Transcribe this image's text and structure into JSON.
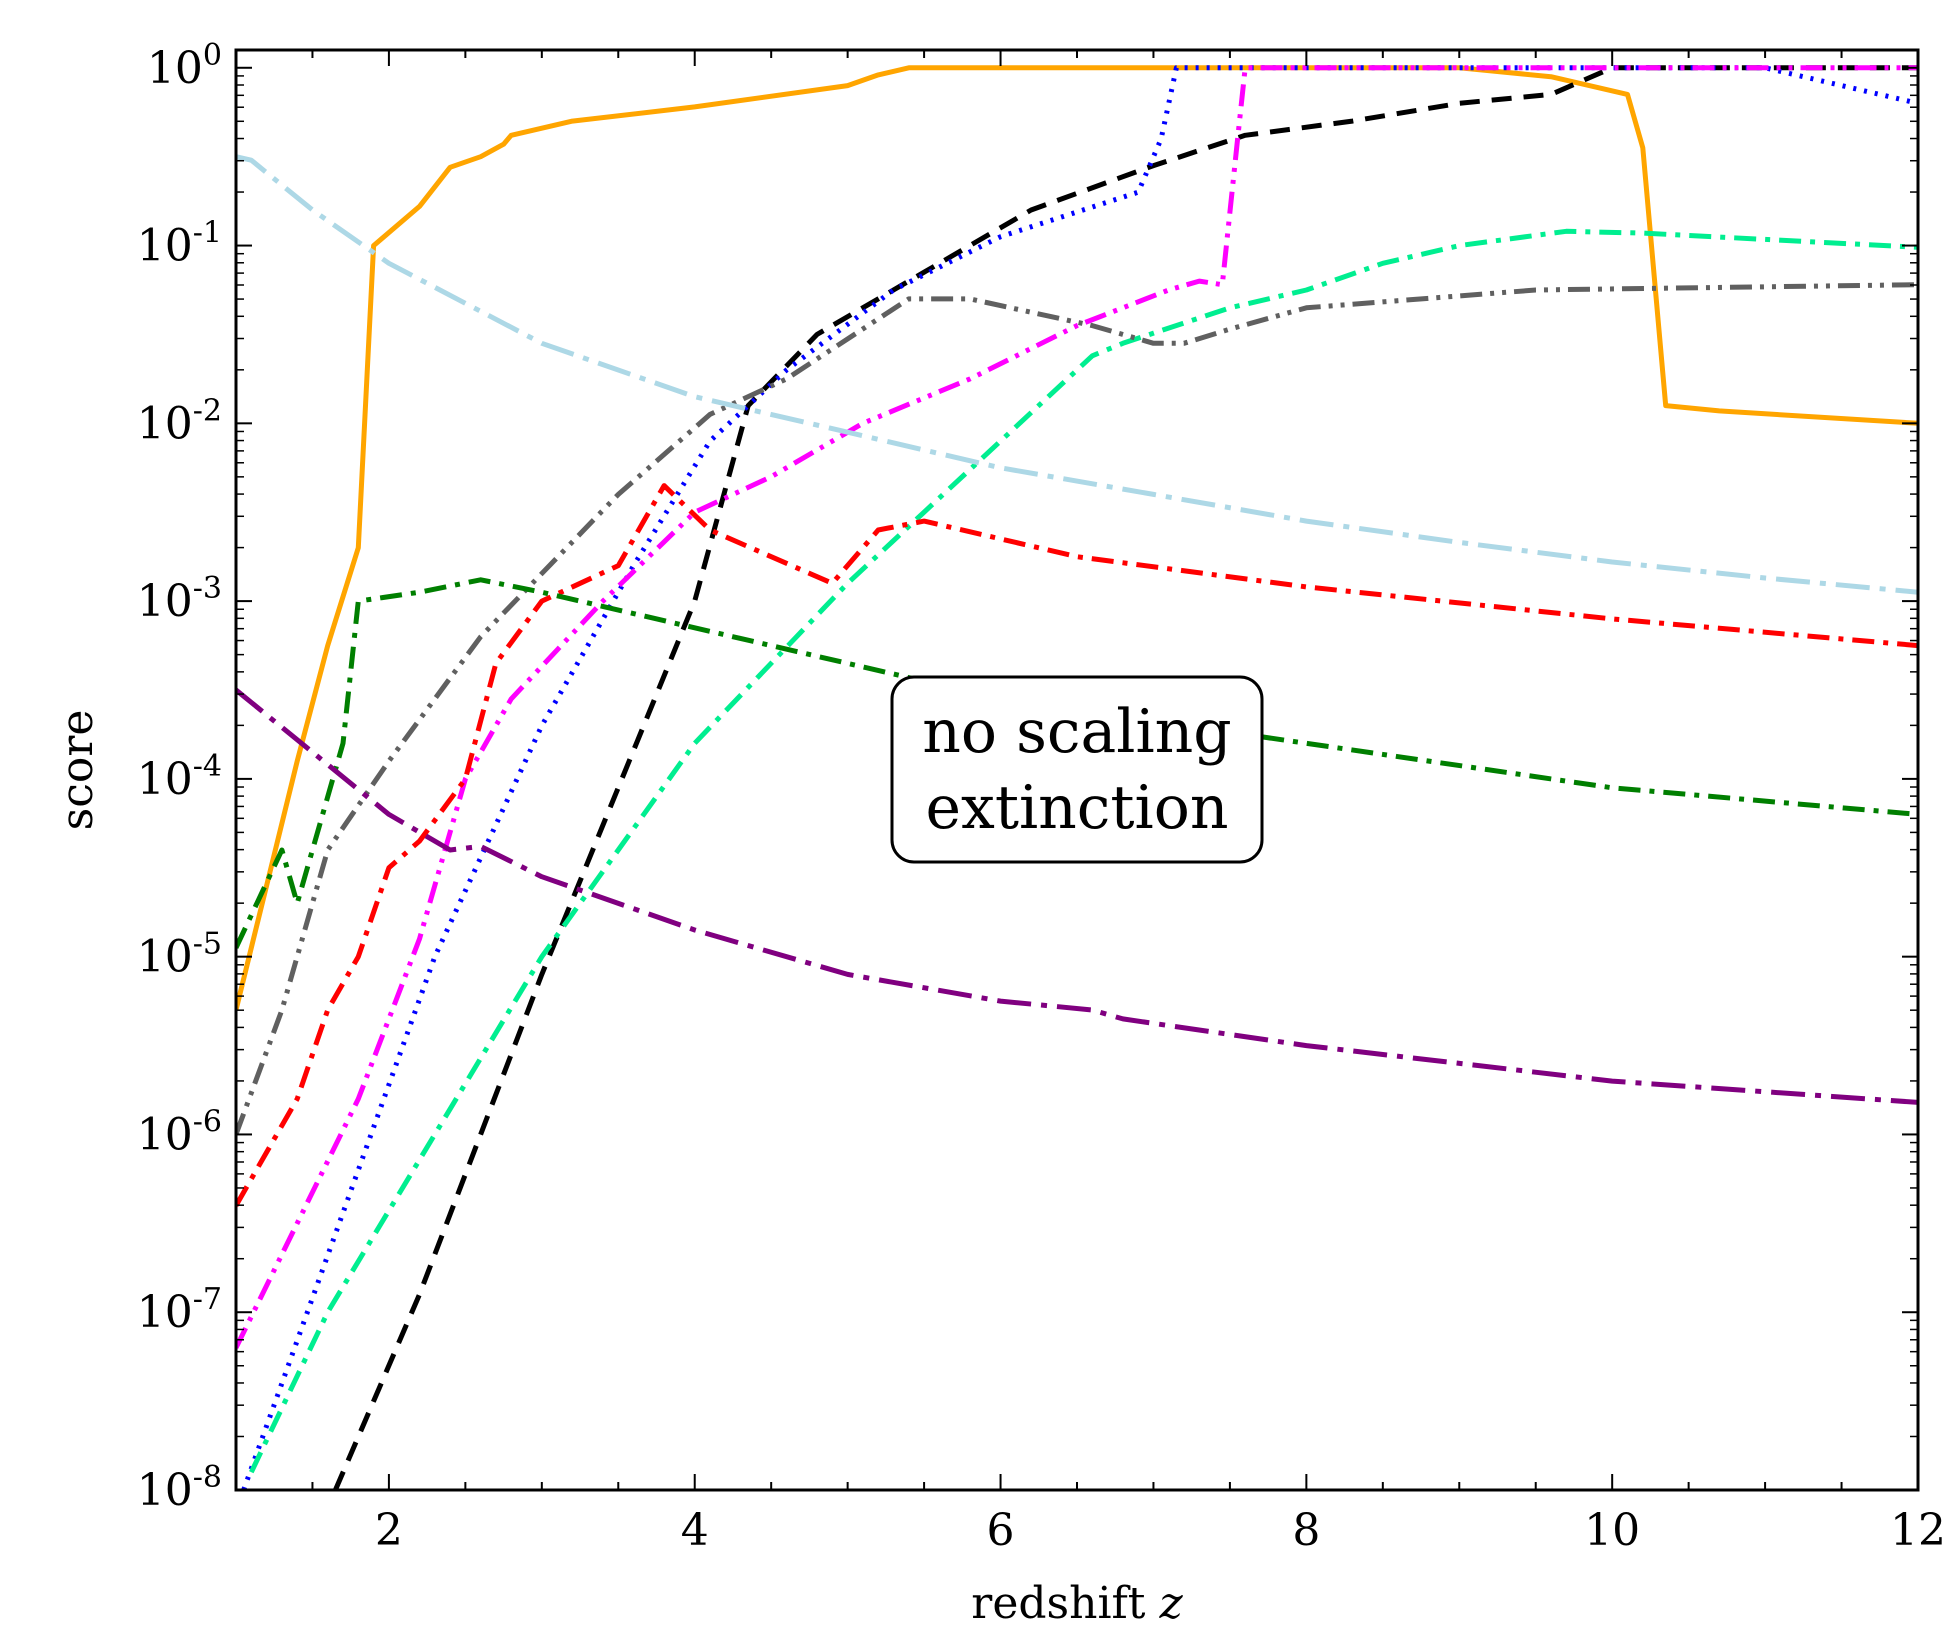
{
  "chart_data": {
    "type": "line",
    "title": "",
    "xlabel": "redshift",
    "xlabel_var": "z",
    "ylabel": "score",
    "xlim": [
      1,
      12
    ],
    "ylim_log10": [
      -8,
      0.1
    ],
    "yscale": "log",
    "x_ticks": [
      {
        "value": 2,
        "label": "2"
      },
      {
        "value": 4,
        "label": "4"
      },
      {
        "value": 6,
        "label": "6"
      },
      {
        "value": 8,
        "label": "8"
      },
      {
        "value": 10,
        "label": "10"
      },
      {
        "value": 12,
        "label": "12"
      }
    ],
    "y_ticks": [
      {
        "exp": 0,
        "base": "10",
        "sup": "0"
      },
      {
        "exp": -1,
        "base": "10",
        "sup": "-1"
      },
      {
        "exp": -2,
        "base": "10",
        "sup": "-2"
      },
      {
        "exp": -3,
        "base": "10",
        "sup": "-3"
      },
      {
        "exp": -4,
        "base": "10",
        "sup": "-4"
      },
      {
        "exp": -5,
        "base": "10",
        "sup": "-5"
      },
      {
        "exp": -6,
        "base": "10",
        "sup": "-6"
      },
      {
        "exp": -7,
        "base": "10",
        "sup": "-7"
      },
      {
        "exp": -8,
        "base": "10",
        "sup": "-8"
      }
    ],
    "annotation": {
      "lines": [
        "no scaling",
        "extinction"
      ]
    },
    "series": [
      {
        "name": "orange-solid",
        "color": "#ffa500",
        "style": "solid",
        "points": [
          [
            1,
            -5.3
          ],
          [
            1.2,
            -4.6
          ],
          [
            1.4,
            -3.9
          ],
          [
            1.6,
            -3.25
          ],
          [
            1.8,
            -2.7
          ],
          [
            1.9,
            -1.0
          ],
          [
            2.2,
            -0.78
          ],
          [
            2.4,
            -0.56
          ],
          [
            2.6,
            -0.5
          ],
          [
            2.75,
            -0.43
          ],
          [
            2.8,
            -0.38
          ],
          [
            3.2,
            -0.3
          ],
          [
            4,
            -0.22
          ],
          [
            5,
            -0.1
          ],
          [
            5.2,
            -0.04
          ],
          [
            5.4,
            0
          ],
          [
            9,
            0
          ],
          [
            9.6,
            -0.05
          ],
          [
            10.1,
            -0.15
          ],
          [
            10.2,
            -0.45
          ],
          [
            10.35,
            -1.9
          ],
          [
            10.7,
            -1.93
          ],
          [
            12,
            -2
          ]
        ]
      },
      {
        "name": "black-dashed",
        "color": "#000000",
        "style": "dashed",
        "points": [
          [
            1.65,
            -8
          ],
          [
            2.2,
            -6.9
          ],
          [
            3,
            -5.1
          ],
          [
            4,
            -3
          ],
          [
            4.35,
            -1.9
          ],
          [
            4.8,
            -1.5
          ],
          [
            5.5,
            -1.15
          ],
          [
            6.2,
            -0.8
          ],
          [
            7,
            -0.55
          ],
          [
            7.6,
            -0.38
          ],
          [
            8.3,
            -0.3
          ],
          [
            9,
            -0.2
          ],
          [
            9.6,
            -0.15
          ],
          [
            10,
            0
          ],
          [
            12,
            0
          ]
        ]
      },
      {
        "name": "blue-dotted",
        "color": "#0000ff",
        "style": "dotted",
        "points": [
          [
            1.05,
            -8
          ],
          [
            1.3,
            -7.4
          ],
          [
            1.8,
            -6.2
          ],
          [
            2.3,
            -5
          ],
          [
            3,
            -3.7
          ],
          [
            3.6,
            -2.8
          ],
          [
            4.1,
            -2.1
          ],
          [
            4.6,
            -1.7
          ],
          [
            5.3,
            -1.25
          ],
          [
            6,
            -0.95
          ],
          [
            6.9,
            -0.7
          ],
          [
            7.05,
            -0.4
          ],
          [
            7.15,
            0
          ],
          [
            11,
            0
          ],
          [
            12,
            -0.2
          ]
        ]
      },
      {
        "name": "magenta-dashdotdot",
        "color": "#ff00ff",
        "style": "dashdotdot",
        "points": [
          [
            1,
            -7.2
          ],
          [
            1.4,
            -6.5
          ],
          [
            1.8,
            -5.8
          ],
          [
            2.2,
            -4.9
          ],
          [
            2.5,
            -4
          ],
          [
            2.8,
            -3.55
          ],
          [
            3.4,
            -3
          ],
          [
            4,
            -2.5
          ],
          [
            4.5,
            -2.3
          ],
          [
            5.1,
            -2
          ],
          [
            5.8,
            -1.75
          ],
          [
            6.5,
            -1.45
          ],
          [
            7.1,
            -1.25
          ],
          [
            7.3,
            -1.2
          ],
          [
            7.45,
            -1.22
          ],
          [
            7.55,
            -0.4
          ],
          [
            7.6,
            0
          ],
          [
            12,
            0
          ]
        ]
      },
      {
        "name": "springgreen-dashdot",
        "color": "#00ee90",
        "style": "dashdot",
        "points": [
          [
            1.1,
            -7.9
          ],
          [
            1.6,
            -7
          ],
          [
            2.3,
            -6
          ],
          [
            3,
            -5
          ],
          [
            4,
            -3.8
          ],
          [
            5,
            -2.9
          ],
          [
            6,
            -2.1
          ],
          [
            6.6,
            -1.62
          ],
          [
            6.8,
            -1.55
          ],
          [
            7.5,
            -1.35
          ],
          [
            8,
            -1.25
          ],
          [
            8.5,
            -1.1
          ],
          [
            9,
            -1
          ],
          [
            9.7,
            -0.92
          ],
          [
            10.2,
            -0.93
          ],
          [
            12,
            -1.01
          ]
        ]
      },
      {
        "name": "gray-dashdotdot",
        "color": "#606060",
        "style": "dashdotdot",
        "points": [
          [
            1,
            -6
          ],
          [
            1.3,
            -5.3
          ],
          [
            1.6,
            -4.4
          ],
          [
            2,
            -3.9
          ],
          [
            2.6,
            -3.2
          ],
          [
            3.5,
            -2.4
          ],
          [
            4.1,
            -1.95
          ],
          [
            4.6,
            -1.75
          ],
          [
            5.4,
            -1.3
          ],
          [
            5.8,
            -1.3
          ],
          [
            6.6,
            -1.45
          ],
          [
            7,
            -1.55
          ],
          [
            7.2,
            -1.55
          ],
          [
            7.5,
            -1.47
          ],
          [
            8,
            -1.35
          ],
          [
            9.5,
            -1.25
          ],
          [
            12,
            -1.22
          ]
        ]
      },
      {
        "name": "red-dashdot",
        "color": "#ff0000",
        "style": "dashdot",
        "points": [
          [
            1,
            -6.4
          ],
          [
            1.4,
            -5.8
          ],
          [
            1.6,
            -5.3
          ],
          [
            1.8,
            -5
          ],
          [
            2,
            -4.5
          ],
          [
            2.2,
            -4.35
          ],
          [
            2.5,
            -4
          ],
          [
            2.7,
            -3.35
          ],
          [
            3,
            -3
          ],
          [
            3.5,
            -2.8
          ],
          [
            3.8,
            -2.35
          ],
          [
            4.1,
            -2.6
          ],
          [
            4.9,
            -2.9
          ],
          [
            5.2,
            -2.6
          ],
          [
            5.5,
            -2.55
          ],
          [
            6.5,
            -2.75
          ],
          [
            8,
            -2.92
          ],
          [
            10,
            -3.1
          ],
          [
            12,
            -3.25
          ]
        ]
      },
      {
        "name": "lightblue-longdashdot",
        "color": "#add8e6",
        "style": "longdashdot",
        "points": [
          [
            1,
            -0.5
          ],
          [
            1.1,
            -0.52
          ],
          [
            1.5,
            -0.8
          ],
          [
            2,
            -1.1
          ],
          [
            3,
            -1.55
          ],
          [
            4,
            -1.85
          ],
          [
            5,
            -2.05
          ],
          [
            6,
            -2.25
          ],
          [
            7,
            -2.4
          ],
          [
            8,
            -2.55
          ],
          [
            9,
            -2.67
          ],
          [
            10,
            -2.78
          ],
          [
            11,
            -2.87
          ],
          [
            12,
            -2.95
          ]
        ]
      },
      {
        "name": "green-dashdot",
        "color": "#007f00",
        "style": "dashdot",
        "points": [
          [
            1,
            -4.95
          ],
          [
            1.3,
            -4.4
          ],
          [
            1.4,
            -4.7
          ],
          [
            1.7,
            -3.8
          ],
          [
            1.8,
            -3
          ],
          [
            2.2,
            -2.95
          ],
          [
            2.6,
            -2.88
          ],
          [
            3,
            -2.95
          ],
          [
            4,
            -3.15
          ],
          [
            6,
            -3.55
          ],
          [
            8,
            -3.8
          ],
          [
            10,
            -4.05
          ],
          [
            12,
            -4.2
          ]
        ]
      },
      {
        "name": "purple-longdashdot",
        "color": "#800080",
        "style": "longdashdot",
        "points": [
          [
            1,
            -3.5
          ],
          [
            1.5,
            -3.85
          ],
          [
            2,
            -4.2
          ],
          [
            2.4,
            -4.4
          ],
          [
            2.6,
            -4.38
          ],
          [
            3,
            -4.55
          ],
          [
            4,
            -4.85
          ],
          [
            5,
            -5.1
          ],
          [
            6,
            -5.25
          ],
          [
            6.6,
            -5.3
          ],
          [
            6.8,
            -5.35
          ],
          [
            8,
            -5.5
          ],
          [
            10,
            -5.7
          ],
          [
            12,
            -5.82
          ]
        ]
      }
    ]
  }
}
